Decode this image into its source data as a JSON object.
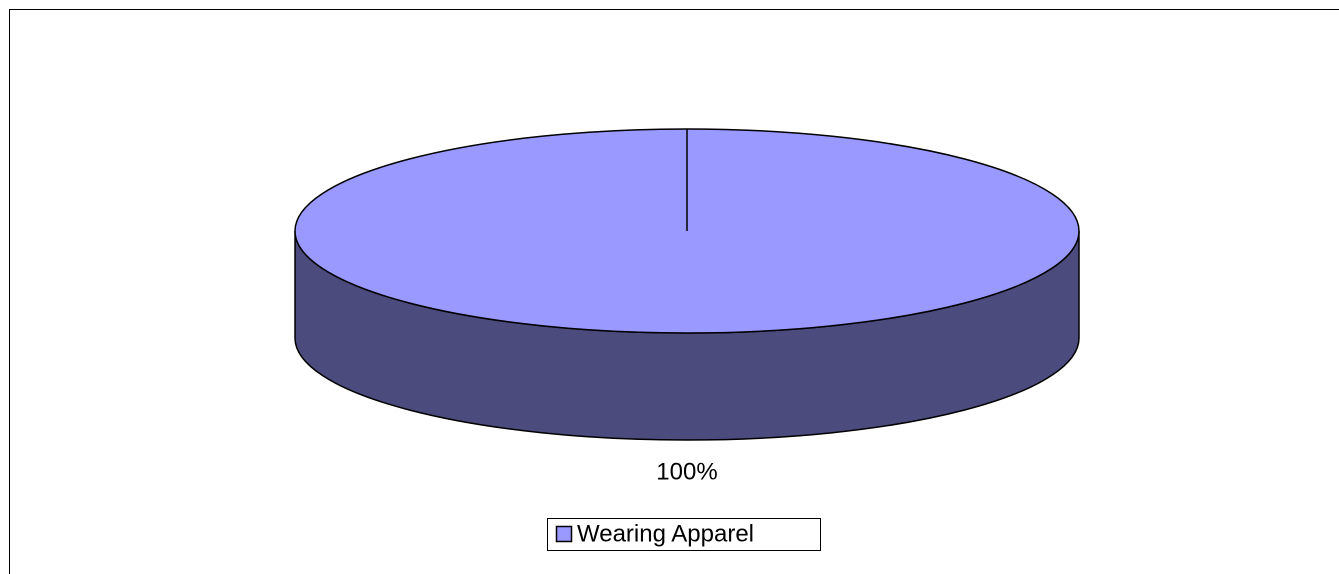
{
  "chart_data": {
    "type": "pie",
    "categories": [
      "Wearing Apparel"
    ],
    "values": [
      100
    ],
    "value_labels": [
      "100%"
    ],
    "colors": [
      "#9999ff"
    ],
    "side_colors": [
      "#4b4b7e"
    ],
    "legend": "bottom"
  }
}
